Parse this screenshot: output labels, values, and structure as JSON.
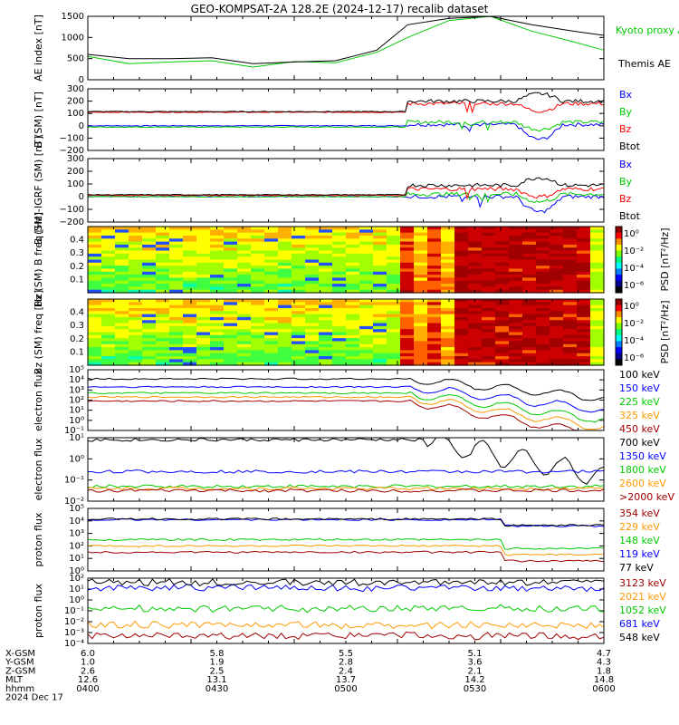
{
  "title": "GEO-KOMPSAT-2A 128.2E (2024-12-17) recalib dataset",
  "colors": {
    "black": "#000000",
    "blue": "#0000ff",
    "green": "#00cc00",
    "red": "#ff0000",
    "orange": "#ff9900",
    "darkred": "#a00000",
    "kyoto_green": "#00cc00"
  },
  "chart_data": [
    {
      "type": "line",
      "ylabel": "AE index [nT]",
      "ylim": [
        0,
        1500
      ],
      "yticks": [
        "0",
        "500",
        "1000",
        "1500"
      ],
      "series": [
        {
          "name": "Kyoto proxy AE",
          "color": "#00cc00",
          "x": [
            0,
            0.08,
            0.16,
            0.24,
            0.32,
            0.4,
            0.48,
            0.56,
            0.62,
            0.7,
            0.78,
            0.86,
            0.94,
            1.0
          ],
          "values": [
            550,
            380,
            420,
            450,
            300,
            430,
            400,
            650,
            1000,
            1400,
            1500,
            1150,
            900,
            700
          ]
        },
        {
          "name": "Themis AE",
          "color": "#000000",
          "x": [
            0,
            0.08,
            0.16,
            0.24,
            0.32,
            0.4,
            0.48,
            0.56,
            0.62,
            0.7,
            0.78,
            0.86,
            0.94,
            1.0
          ],
          "values": [
            600,
            500,
            500,
            520,
            380,
            420,
            450,
            700,
            1300,
            1450,
            1600,
            1300,
            1150,
            1050
          ]
        }
      ]
    },
    {
      "type": "line",
      "ylabel": "B (SM) [nT]",
      "ylim": [
        -200,
        300
      ],
      "yticks": [
        "−200",
        "−100",
        "0",
        "100",
        "200",
        "300"
      ],
      "series": [
        {
          "name": "Bx",
          "color": "#0000ff",
          "level_before": 0,
          "level_after": 10
        },
        {
          "name": "By",
          "color": "#00cc00",
          "level_before": -10,
          "level_after": 30
        },
        {
          "name": "Bz",
          "color": "#ff0000",
          "level_before": 110,
          "level_after": 180
        },
        {
          "name": "Btot",
          "color": "#000000",
          "level_before": 115,
          "level_after": 200
        }
      ]
    },
    {
      "type": "line",
      "ylabel": "B (SM)-IGRF (SM) [nT]",
      "ylim": [
        -200,
        300
      ],
      "yticks": [
        "−200",
        "−100",
        "0",
        "100",
        "200",
        "300"
      ],
      "series": [
        {
          "name": "Bx",
          "color": "#0000ff",
          "level_before": 0,
          "level_after": 0
        },
        {
          "name": "By",
          "color": "#00cc00",
          "level_before": 0,
          "level_after": 20
        },
        {
          "name": "Bz",
          "color": "#ff0000",
          "level_before": 10,
          "level_after": 60
        },
        {
          "name": "Btot",
          "color": "#000000",
          "level_before": 15,
          "level_after": 90
        }
      ]
    },
    {
      "type": "heatmap",
      "ylabel": "Bx (SM) B freq [Hz]",
      "ylim": [
        0,
        0.5
      ],
      "yticks": [
        "0.1",
        "0.2",
        "0.3",
        "0.4"
      ],
      "colorbar_label": "PSD [nT²/Hz]",
      "colorbar_ticks": [
        "10⁰",
        "10⁻²",
        "10⁻⁴",
        "10⁻⁶"
      ]
    },
    {
      "type": "heatmap",
      "ylabel": "Bz (SM) freq [Hz]",
      "ylim": [
        0,
        0.5
      ],
      "yticks": [
        "0.1",
        "0.2",
        "0.3",
        "0.4"
      ],
      "colorbar_label": "PSD [nT²/Hz]",
      "colorbar_ticks": [
        "10⁰",
        "10⁻²",
        "10⁻⁴",
        "10⁻⁶"
      ]
    },
    {
      "type": "line",
      "ylabel": "electron flux",
      "yscale": "log",
      "yticks": [
        "10⁻¹",
        "10⁰",
        "10¹",
        "10²",
        "10³",
        "10⁴",
        "10⁵"
      ],
      "series": [
        {
          "name": "100 keV",
          "color": "#000000",
          "level": 4.1
        },
        {
          "name": "150 keV",
          "color": "#0000ff",
          "level": 3.3
        },
        {
          "name": "225 keV",
          "color": "#00cc00",
          "level": 2.7
        },
        {
          "name": "325 keV",
          "color": "#ff9900",
          "level": 2.3
        },
        {
          "name": "450 keV",
          "color": "#a00000",
          "level": 1.9
        }
      ]
    },
    {
      "type": "line",
      "ylabel": "electron flux",
      "yscale": "log",
      "yticks": [
        "10⁻²",
        "10⁻¹",
        "10⁰",
        "10¹"
      ],
      "series": [
        {
          "name": "700 keV",
          "color": "#000000",
          "level": 0.9
        },
        {
          "name": "1350 keV",
          "color": "#0000ff",
          "level": -0.6
        },
        {
          "name": "1800 keV",
          "color": "#00cc00",
          "level": -1.3
        },
        {
          "name": "2600 keV",
          "color": "#ff9900",
          "level": -1.4
        },
        {
          "name": ">2000 keV",
          "color": "#a00000",
          "level": -1.5
        }
      ]
    },
    {
      "type": "line",
      "ylabel": "proton flux",
      "yscale": "log",
      "yticks": [
        "10⁰",
        "10¹",
        "10²",
        "10³",
        "10⁴",
        "10⁵"
      ],
      "series": [
        {
          "name": "354 keV",
          "color": "#a00000",
          "level": 1.5
        },
        {
          "name": "229 keV",
          "color": "#ff9900",
          "level": 2.0
        },
        {
          "name": "148 keV",
          "color": "#00cc00",
          "level": 2.5
        },
        {
          "name": "119 keV",
          "color": "#0000ff",
          "level": 4.1
        },
        {
          "name": "77 keV",
          "color": "#000000",
          "level": 4.15
        }
      ]
    },
    {
      "type": "line",
      "ylabel": "proton flux",
      "yscale": "log",
      "yticks": [
        "10⁻⁴",
        "10⁻³",
        "10⁻²",
        "10⁻¹",
        "10⁰",
        "10¹",
        "10²"
      ],
      "series": [
        {
          "name": "3123 keV",
          "color": "#a00000",
          "level": -3.3
        },
        {
          "name": "2021 keV",
          "color": "#ff9900",
          "level": -2.3
        },
        {
          "name": "1052 keV",
          "color": "#00cc00",
          "level": -0.8
        },
        {
          "name": "681 keV",
          "color": "#0000ff",
          "level": 1.1
        },
        {
          "name": "548 keV",
          "color": "#000000",
          "level": 1.6
        }
      ]
    }
  ],
  "footer": {
    "row_labels": [
      "X-GSM",
      "Y-GSM",
      "Z-GSM",
      "MLT",
      "hhmm",
      "2024 Dec 17"
    ],
    "columns": [
      [
        "6.0",
        "1.0",
        "2.6",
        "12.6",
        "0400"
      ],
      [
        "5.8",
        "1.9",
        "2.5",
        "13.1",
        "0430"
      ],
      [
        "5.5",
        "2.8",
        "2.4",
        "13.7",
        "0500"
      ],
      [
        "5.1",
        "3.6",
        "2.1",
        "14.2",
        "0530"
      ],
      [
        "4.7",
        "4.3",
        "1.8",
        "14.8",
        "0600"
      ]
    ]
  }
}
